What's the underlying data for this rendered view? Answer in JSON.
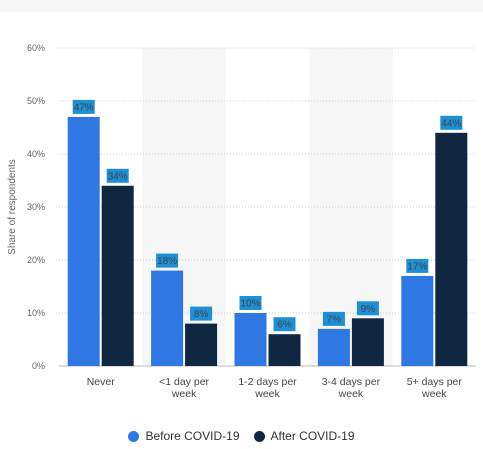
{
  "chart_data": {
    "type": "bar",
    "categories": [
      "Never",
      "<1 day per week",
      "1-2 days per week",
      "3-4 days per week",
      "5+ days per week"
    ],
    "category_lines": [
      [
        "Never"
      ],
      [
        "<1 day per",
        "week"
      ],
      [
        "1-2 days per",
        "week"
      ],
      [
        "3-4 days per",
        "week"
      ],
      [
        "5+ days per",
        "week"
      ]
    ],
    "series": [
      {
        "name": "Before COVID-19",
        "values": [
          47,
          18,
          10,
          7,
          17
        ],
        "color": "#2f78e3"
      },
      {
        "name": "After COVID-19",
        "values": [
          34,
          8,
          6,
          9,
          44
        ],
        "color": "#0f2740"
      }
    ],
    "data_labels": [
      [
        "47%",
        "18%",
        "10%",
        "7%",
        "17%"
      ],
      [
        "34%",
        "8%",
        "6%",
        "9%",
        "44%"
      ]
    ],
    "title": "",
    "xlabel": "",
    "ylabel": "Share of respondents",
    "ylim": [
      0,
      60
    ],
    "yticks": [
      0,
      10,
      20,
      30,
      40,
      50,
      60
    ],
    "ytick_labels": [
      "0%",
      "10%",
      "20%",
      "30%",
      "40%",
      "50%",
      "60%"
    ],
    "grid": true,
    "legend_position": "bottom"
  },
  "colors": {
    "label_badge": "#1c8fd6",
    "band_shade": "#f6f6f6",
    "grid": "#cccccc",
    "axis_text": "#666666"
  }
}
